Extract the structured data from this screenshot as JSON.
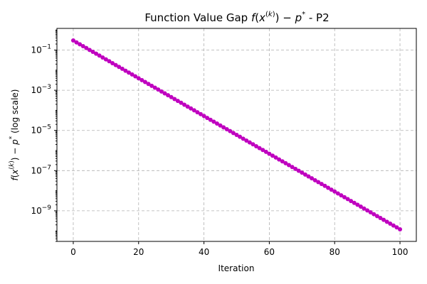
{
  "chart_data": {
    "type": "line",
    "title_prefix": "Function Value Gap ",
    "title_math": "f(x(k)) − p*",
    "title_suffix": " - P2",
    "xlabel": "Iteration",
    "ylabel_math": "f(x(k)) − p*",
    "ylabel_suffix": " (log scale)",
    "xscale": "linear",
    "yscale": "log",
    "xlim": [
      -5,
      105
    ],
    "ylim": [
      3e-11,
      1.2
    ],
    "x_ticks": [
      0,
      20,
      40,
      60,
      80,
      100
    ],
    "y_tick_exponents": [
      -1,
      -3,
      -5,
      -7,
      -9
    ],
    "grid": true,
    "series": [
      {
        "color": "#bf00bf",
        "marker": "circle",
        "start_x": 0,
        "end_x": 100,
        "start_value": 0.3,
        "end_value": 1.2e-10
      }
    ]
  }
}
